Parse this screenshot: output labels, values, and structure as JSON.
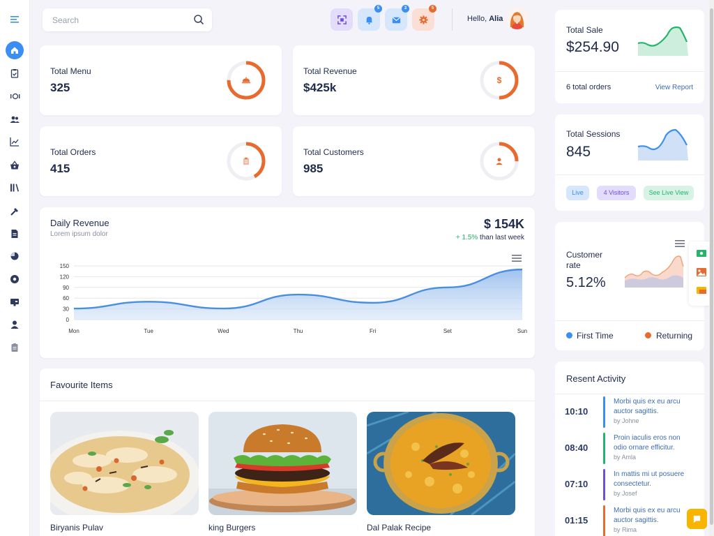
{
  "header": {
    "search_placeholder": "Search",
    "greeting": "Hello, ",
    "user_name": "Alia",
    "badges": {
      "notifications": "5",
      "messages": "3",
      "settings": "5"
    }
  },
  "sidebar": {
    "icons": [
      "menu-icon",
      "home-icon",
      "clipboard-icon",
      "serving-icon",
      "users-icon",
      "chart-line-icon",
      "basket-icon",
      "library-icon",
      "tools-icon",
      "document-icon",
      "pie-chart-icon",
      "disc-icon",
      "monitor-icon",
      "user-icon",
      "report-icon"
    ]
  },
  "stats": [
    {
      "label": "Total Menu",
      "value": "325",
      "progress": 0.75
    },
    {
      "label": "Total Revenue",
      "value": "$425k",
      "progress": 0.5
    },
    {
      "label": "Total Orders",
      "value": "415",
      "progress": 0.42
    },
    {
      "label": "Total Customers",
      "value": "985",
      "progress": 0.25
    }
  ],
  "revenue_symbol": "$",
  "daily_revenue": {
    "title": "Daily Revenue",
    "subtitle": "Lorem ipsum dolor",
    "amount": "$ 154K",
    "change_pos": "+ 1.5%",
    "change_text": " than last week",
    "chart_data": {
      "type": "area",
      "categories": [
        "Mon",
        "Tue",
        "Wed",
        "Thu",
        "Fri",
        "Sat",
        "Sun"
      ],
      "x_labels": [
        "Mon",
        "Tue",
        "Wed",
        "Thu",
        "Fri",
        "Set",
        "Sun"
      ],
      "values": [
        31,
        50,
        31,
        70,
        47,
        90,
        140
      ],
      "yticks": [
        "150",
        "120",
        "90",
        "60",
        "30",
        "0"
      ],
      "ylim": [
        0,
        150
      ],
      "color": "#4a8fdd",
      "grid": true
    }
  },
  "favourites": {
    "title": "Favourite Items",
    "items": [
      {
        "name": "Biryanis Pulav"
      },
      {
        "name": "king Burgers"
      },
      {
        "name": "Dal Palak Recipe"
      }
    ]
  },
  "right": {
    "sale": {
      "label": "Total Sale",
      "value": "$254.90",
      "orders": "6 total orders",
      "link": "View Report"
    },
    "sessions": {
      "label": "Total Sessions",
      "value": "845",
      "pills": [
        "Live",
        "4 Visitors",
        "See Live View"
      ]
    },
    "customer": {
      "label_line1": "Customer",
      "label_line2": "rate",
      "value": "5.12%",
      "legend": [
        "First Time",
        "Returning"
      ]
    },
    "activity": {
      "title": "Resent Activity",
      "items": [
        {
          "time": "10:10",
          "line1": "Morbi quis ex eu arcu",
          "line2": "auctor sagittis.",
          "by": "by Johne",
          "color": "#3c8ff2"
        },
        {
          "time": "08:40",
          "line1": "Proin iaculis eros non",
          "line2": "odio ornare efficitur.",
          "by": "by Amla",
          "color": "#22b56b"
        },
        {
          "time": "07:10",
          "line1": "In mattis mi ut posuere",
          "line2": "consectetur.",
          "by": "by Josef",
          "color": "#6f4fd8"
        },
        {
          "time": "01:15",
          "line1": "Morbi quis ex eu arcu",
          "line2": "auctor sagittis.",
          "by": "by Rima",
          "color": "#e86a2e"
        }
      ]
    }
  },
  "colors": {
    "accent": "#3c8ff2",
    "orange": "#e86a2e",
    "green": "#22b56b",
    "purple": "#6f4fd8"
  }
}
